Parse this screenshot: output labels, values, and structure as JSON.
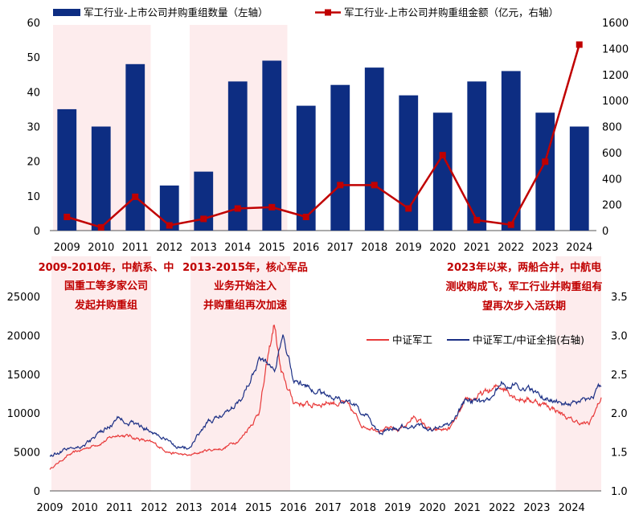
{
  "colors": {
    "bar": "#0d2d82",
    "amount_line": "#c00000",
    "csi_defense": "#e83a3a",
    "ratio_line": "#1b2f85",
    "shade": "#fdeced"
  },
  "chart_data": [
    {
      "type": "bar",
      "categories": [
        "2009",
        "2010",
        "2011",
        "2012",
        "2013",
        "2014",
        "2015",
        "2016",
        "2017",
        "2018",
        "2019",
        "2020",
        "2021",
        "2022",
        "2023",
        "2024"
      ],
      "series": [
        {
          "name": "军工行业-上市公司并购重组数量（左轴）",
          "type": "bar",
          "axis": "left",
          "values": [
            35,
            30,
            48,
            13,
            17,
            43,
            49,
            36,
            42,
            47,
            39,
            34,
            43,
            46,
            34,
            30
          ]
        },
        {
          "name": "军工行业-上市公司并购重组金额（亿元，右轴）",
          "type": "line",
          "axis": "right",
          "values": [
            105,
            25,
            260,
            40,
            90,
            170,
            180,
            105,
            350,
            350,
            170,
            580,
            80,
            45,
            530,
            1430
          ]
        }
      ],
      "ylim_left": [
        0,
        60
      ],
      "ylim_right": [
        0,
        1600
      ],
      "left_ticks": [
        "0",
        "10",
        "20",
        "30",
        "40",
        "50",
        "60"
      ],
      "right_ticks": [
        "0",
        "200",
        "400",
        "600",
        "800",
        "1000",
        "1200",
        "1400",
        "1600"
      ],
      "legend_position": "top",
      "shaded_periods": [
        [
          "2009",
          "2011"
        ],
        [
          "2013",
          "2015"
        ]
      ]
    },
    {
      "type": "line",
      "x_ticks": [
        "2009",
        "2010",
        "2011",
        "2012",
        "2013",
        "2014",
        "2015",
        "2016",
        "2017",
        "2018",
        "2019",
        "2020",
        "2021",
        "2022",
        "2023",
        "2024"
      ],
      "ylim_left": [
        0,
        25000
      ],
      "ylim_right": [
        1.0,
        3.5
      ],
      "left_ticks": [
        "0",
        "5000",
        "10000",
        "15000",
        "20000",
        "25000"
      ],
      "right_ticks": [
        "1.0",
        "1.5",
        "2.0",
        "2.5",
        "3.0",
        "3.5"
      ],
      "legend_position": "right",
      "series": [
        {
          "name": "中证军工",
          "axis": "left",
          "x": [
            2009.0,
            2009.5,
            2010.0,
            2010.5,
            2011.0,
            2011.5,
            2012.0,
            2012.5,
            2013.0,
            2013.5,
            2014.0,
            2014.5,
            2015.0,
            2015.45,
            2015.65,
            2016.0,
            2016.5,
            2017.0,
            2017.5,
            2018.0,
            2018.5,
            2019.0,
            2019.5,
            2020.0,
            2020.5,
            2021.0,
            2021.5,
            2022.0,
            2022.5,
            2023.0,
            2023.5,
            2024.0,
            2024.5,
            2024.85
          ],
          "y": [
            2800,
            4500,
            5400,
            6300,
            7300,
            6800,
            6000,
            4900,
            4500,
            5200,
            5500,
            6800,
            10000,
            21500,
            15000,
            11500,
            11000,
            11500,
            11200,
            8400,
            8000,
            7800,
            9500,
            7600,
            8000,
            11500,
            12500,
            13500,
            12000,
            11500,
            10600,
            9000,
            8500,
            12000
          ]
        },
        {
          "name": "中证军工/中证全指(右轴)",
          "axis": "right",
          "x": [
            2009.0,
            2009.5,
            2010.0,
            2010.5,
            2011.0,
            2011.5,
            2012.0,
            2012.5,
            2013.0,
            2013.5,
            2014.0,
            2014.5,
            2015.0,
            2015.5,
            2015.7,
            2016.0,
            2016.5,
            2017.0,
            2017.5,
            2018.0,
            2018.5,
            2019.0,
            2019.5,
            2020.0,
            2020.5,
            2021.0,
            2021.5,
            2022.0,
            2022.5,
            2023.0,
            2023.5,
            2024.0,
            2024.5,
            2024.85
          ],
          "y": [
            1.45,
            1.55,
            1.6,
            1.75,
            1.95,
            1.85,
            1.75,
            1.6,
            1.55,
            1.85,
            2.0,
            2.2,
            2.7,
            2.6,
            3.1,
            2.45,
            2.3,
            2.25,
            2.15,
            2.0,
            1.75,
            1.8,
            1.85,
            1.8,
            1.85,
            2.2,
            2.1,
            2.4,
            2.35,
            2.25,
            2.15,
            2.1,
            2.15,
            2.35
          ]
        }
      ],
      "shaded_periods": [
        [
          "2009",
          "2011"
        ],
        [
          "2013",
          "2015"
        ],
        [
          "2023.5",
          "2024.85"
        ]
      ]
    }
  ],
  "annotations": [
    {
      "lines": [
        "2009-2010年，中航系、中",
        "国重工等多家公司",
        "发起并购重组"
      ]
    },
    {
      "lines": [
        "2013-2015年，核心军品",
        "业务开始注入",
        "并购重组再次加速"
      ]
    },
    {
      "lines": [
        "2023年以来，两船合并，中航电",
        "测收购成飞，军工行业并购重组有",
        "望再次步入活跃期"
      ]
    }
  ]
}
